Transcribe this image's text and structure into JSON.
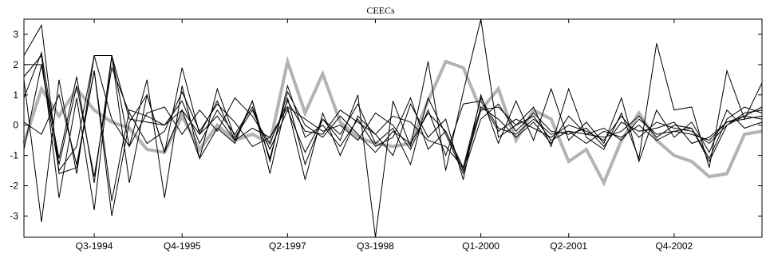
{
  "chart_data": {
    "type": "line",
    "title": "CEECs",
    "xlabel": "",
    "ylabel": "",
    "x_tick_labels": [
      "Q3-1994",
      "Q4-1995",
      "Q2-1997",
      "Q3-1998",
      "Q1-2000",
      "Q2-2001",
      "Q4-2002"
    ],
    "x_tick_positions": [
      4,
      9,
      15,
      20,
      26,
      31,
      37
    ],
    "x_range": [
      0,
      42
    ],
    "ylim": [
      -3.7,
      3.5
    ],
    "y_ticks": [
      3,
      2,
      1,
      0,
      -1,
      -2,
      -3
    ],
    "grid": false,
    "colors": {
      "black_series": "#000000",
      "highlight_series": "#b3b3b3"
    },
    "series": [
      {
        "values": [
          2.3,
          3.3,
          -1.6,
          -1.4,
          1.8,
          -2.5,
          0.5,
          0.3,
          0.0,
          0.8,
          -0.6,
          0.5,
          -0.3,
          0.6,
          -1.1,
          1.1,
          0.0,
          -0.4,
          0.3,
          -0.3,
          -0.9,
          -0.2,
          -0.6,
          0.4,
          -0.2,
          -1.5,
          0.5,
          0.6,
          0.0,
          0.3,
          -0.5,
          -0.2,
          -0.3,
          -0.1,
          -0.5,
          0.2,
          -0.3,
          -0.2,
          -0.3,
          -0.5,
          0.1,
          0.3,
          0.6
        ]
      },
      {
        "values": [
          0.9,
          2.4,
          -1.3,
          1.3,
          -1.7,
          1.9,
          0.4,
          -0.6,
          -0.2,
          1.1,
          -0.2,
          0.7,
          0.1,
          -0.7,
          -0.4,
          0.6,
          0.2,
          -0.2,
          0.0,
          -0.5,
          0.4,
          0.0,
          -0.8,
          0.5,
          -1.0,
          0.7,
          0.8,
          -0.2,
          0.2,
          -0.1,
          -0.4,
          0.0,
          -0.2,
          -0.5,
          0.3,
          -0.4,
          0.1,
          -0.1,
          -0.2,
          -0.6,
          0.0,
          0.4,
          0.5
        ]
      },
      {
        "values": [
          -0.8,
          2.0,
          -1.1,
          1.6,
          -1.9,
          2.3,
          -0.7,
          0.4,
          0.6,
          -0.3,
          0.5,
          -0.2,
          0.9,
          0.3,
          -0.6,
          0.8,
          -0.2,
          -0.3,
          0.5,
          0.1,
          -0.3,
          0.3,
          0.1,
          -0.5,
          -0.7,
          -1.4,
          0.6,
          0.2,
          -0.4,
          0.1,
          -0.6,
          0.3,
          -0.3,
          -0.4,
          -0.2,
          0.3,
          -0.4,
          0.0,
          -0.1,
          -1.1,
          0.2,
          0.6,
          0.4
        ]
      },
      {
        "values": [
          1.6,
          2.3,
          -2.4,
          0.9,
          -2.8,
          2.3,
          -1.9,
          1.0,
          -0.9,
          0.5,
          -1.1,
          1.2,
          -0.4,
          0.5,
          -0.8,
          0.5,
          -0.9,
          0.2,
          -0.3,
          0.7,
          -0.6,
          -0.1,
          -1.3,
          0.9,
          -0.3,
          -1.6,
          0.2,
          0.7,
          -0.2,
          0.4,
          -0.2,
          -0.3,
          -0.1,
          -0.7,
          0.1,
          -0.2,
          -0.1,
          0.1,
          -0.6,
          -0.4,
          0.1,
          0.2,
          0.3
        ]
      },
      {
        "values": [
          2.0,
          2.0,
          -1.5,
          -0.7,
          2.3,
          2.3,
          0.2,
          0.1,
          0.0,
          0.5,
          -0.3,
          0.3,
          -0.5,
          0.8,
          -1.2,
          1.3,
          -0.4,
          0.0,
          -0.7,
          0.2,
          -0.7,
          -0.4,
          0.9,
          -0.8,
          -0.2,
          -1.4,
          0.9,
          -0.1,
          -0.3,
          0.2,
          -0.3,
          -0.2,
          -0.6,
          -0.2,
          -0.4,
          0.0,
          -0.5,
          -0.2,
          -0.1,
          -1.2,
          0.0,
          0.3,
          0.2
        ]
      },
      {
        "values": [
          1.5,
          -3.2,
          1.5,
          -1.6,
          2.3,
          0.2,
          -0.7,
          1.5,
          -2.4,
          1.3,
          -1.1,
          -0.1,
          -0.6,
          0.8,
          -1.6,
          0.9,
          -1.3,
          0.2,
          -0.5,
          1.0,
          -3.7,
          0.8,
          -0.7,
          2.1,
          -1.5,
          1.1,
          3.5,
          -0.4,
          0.0,
          0.6,
          -0.7,
          1.2,
          -0.4,
          -0.8,
          0.4,
          -1.1,
          2.7,
          0.5,
          0.6,
          -1.4,
          1.8,
          0.2,
          1.4
        ]
      },
      {
        "values": [
          0.1,
          -0.3,
          1.0,
          -1.3,
          1.8,
          -3.0,
          0.1,
          1.0,
          -0.9,
          1.9,
          -0.3,
          0.8,
          -0.5,
          -0.1,
          -0.4,
          0.6,
          -1.8,
          0.4,
          -1.0,
          0.3,
          -0.3,
          -1.0,
          0.7,
          -0.4,
          0.2,
          -1.8,
          1.0,
          -0.6,
          0.8,
          -0.5,
          1.2,
          -0.5,
          0.1,
          -0.6,
          0.9,
          -1.2,
          0.5,
          -0.4,
          0.1,
          -0.9,
          0.5,
          -0.1,
          0.1
        ]
      },
      {
        "values": [
          -0.6,
          1.2,
          0.3,
          1.2,
          0.5,
          0.1,
          -0.1,
          -0.8,
          -0.9,
          0.3,
          -0.8,
          0.0,
          -0.5,
          -0.3,
          -0.6,
          2.1,
          0.4,
          1.7,
          0.1,
          -0.4,
          -0.6,
          -0.7,
          -0.6,
          0.8,
          2.1,
          1.9,
          0.5,
          1.2,
          -0.5,
          0.5,
          0.2,
          -1.2,
          -0.8,
          -1.9,
          -0.5,
          0.4,
          -0.5,
          -1.0,
          -1.2,
          -1.7,
          -1.6,
          -0.3,
          -0.2
        ]
      }
    ]
  }
}
